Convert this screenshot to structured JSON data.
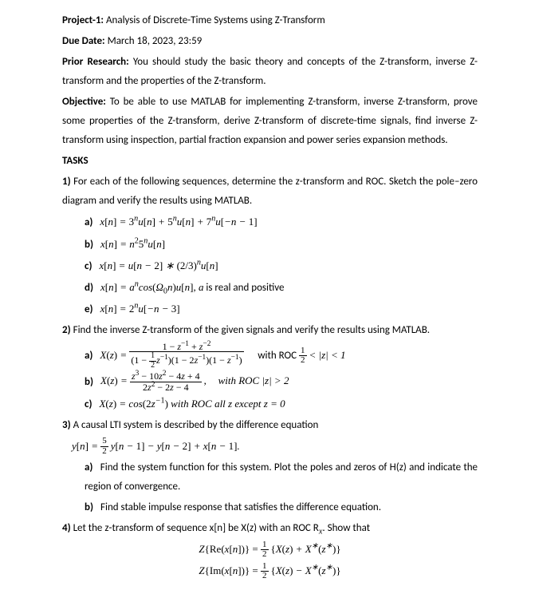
{
  "header": {
    "project_label": "Project-1:",
    "project_title": "Analysis of Discrete-Time Systems using Z-Transform",
    "due_label": "Due Date:",
    "due_value": "March 18, 2023, 23:59",
    "prior_label": "Prior Research:",
    "prior_text": "You should study the basic theory and concepts of the Z-transform, inverse Z-transform and the properties of the Z-transform.",
    "obj_label": "Objective:",
    "obj_text": "To be able to use MATLAB for implementing Z-transform, inverse Z-transform, prove some properties of the Z-transform, derive Z-transform of discrete-time signals, find inverse Z-transform using inspection, partial fraction expansion and power series expansion methods.",
    "tasks_label": "TASKS"
  },
  "t1": {
    "intro": "For each of the following sequences, determine the z-transform and ROC. Sketch the pole–zero diagram and verify the results using MATLAB.",
    "n": "1)",
    "a_l": "a)",
    "b_l": "b)",
    "c_l": "c)",
    "d_l": "d)",
    "e_l": "e)",
    "d_tail": " is real and positive"
  },
  "t2": {
    "n": "2)",
    "intro": "Find the inverse Z-transform of the given signals and verify the results using MATLAB.",
    "a_l": "a)",
    "b_l": "b)",
    "c_l": "c)",
    "roc_a_pre": "with ROC ",
    "roc_a_post": " < |z| < 1",
    "roc_b": "with ROC  |z| > 2",
    "c_tail": " with ROC all z except z = 0"
  },
  "t3": {
    "n": "3)",
    "intro": "A causal LTI system is described by the difference equation",
    "a_l": "a)",
    "a_text": "Find the system function for this system. Plot the poles and zeros of  H(z) and indicate the region of convergence.",
    "b_l": "b)",
    "b_text": "Find stable impulse response that satisfies the difference equation."
  },
  "t4": {
    "n": "4)",
    "intro_a": "Let the z-transform of sequence x[n] be X(z) with an ROC R",
    "intro_b": ". Show that"
  }
}
